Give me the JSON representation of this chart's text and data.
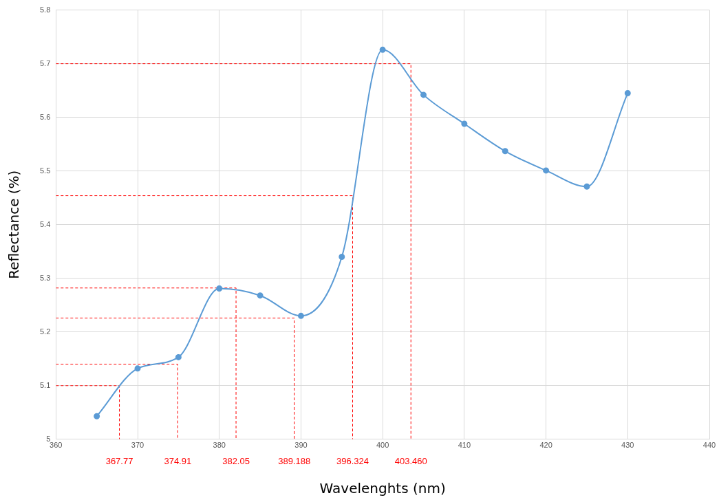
{
  "chart_data": {
    "type": "line",
    "xlabel": "Wavelenghts (nm)",
    "ylabel": "Reflectance (%)",
    "xlim": [
      360,
      440
    ],
    "xticks": [
      360,
      370,
      380,
      390,
      400,
      410,
      420,
      430,
      440
    ],
    "ylim": [
      5,
      5.8
    ],
    "yticks": [
      5,
      5.1,
      5.2,
      5.3,
      5.4,
      5.5,
      5.6,
      5.7,
      5.8
    ],
    "grid": true,
    "legend": false,
    "marker": "circle",
    "line_style": "solid",
    "series": [
      {
        "color": "#5b9bd5",
        "x": [
          365,
          370,
          375,
          380,
          385,
          390,
          395,
          400,
          405,
          410,
          415,
          420,
          425,
          430
        ],
        "values": [
          5.043,
          5.132,
          5.153,
          5.281,
          5.268,
          5.23,
          5.34,
          5.726,
          5.642,
          5.588,
          5.537,
          5.501,
          5.471,
          5.645
        ]
      },
      {
        "color": "#ff0000",
        "line_style": "dashed",
        "marker": "none",
        "x": [
          360,
          367.77,
          367.77
        ],
        "values": [
          5.1,
          5.1,
          5
        ]
      },
      {
        "color": "#ff0000",
        "line_style": "dashed",
        "marker": "none",
        "x": [
          360,
          374.91,
          374.91
        ],
        "values": [
          5.14,
          5.14,
          5
        ]
      },
      {
        "color": "#ff0000",
        "line_style": "dashed",
        "marker": "none",
        "x": [
          360,
          382.05,
          382.05
        ],
        "values": [
          5.282,
          5.282,
          5
        ]
      },
      {
        "color": "#ff0000",
        "line_style": "dashed",
        "marker": "none",
        "x": [
          360,
          389.188,
          389.188
        ],
        "values": [
          5.226,
          5.226,
          5
        ]
      },
      {
        "color": "#ff0000",
        "line_style": "dashed",
        "marker": "none",
        "x": [
          360,
          396.324,
          396.324
        ],
        "values": [
          5.454,
          5.454,
          5
        ]
      },
      {
        "color": "#ff0000",
        "line_style": "dashed",
        "marker": "none",
        "x": [
          360,
          403.46,
          403.46
        ],
        "values": [
          5.7,
          5.7,
          5
        ]
      }
    ],
    "annotations": [
      {
        "text": "367.77",
        "x": 367.77,
        "y": 5
      },
      {
        "text": "374.91",
        "x": 374.91,
        "y": 5
      },
      {
        "text": "382.05",
        "x": 382.05,
        "y": 5
      },
      {
        "text": "389.188",
        "x": 389.188,
        "y": 5
      },
      {
        "text": "396.324",
        "x": 396.324,
        "y": 5
      },
      {
        "text": "403.460",
        "x": 403.46,
        "y": 5
      }
    ]
  }
}
